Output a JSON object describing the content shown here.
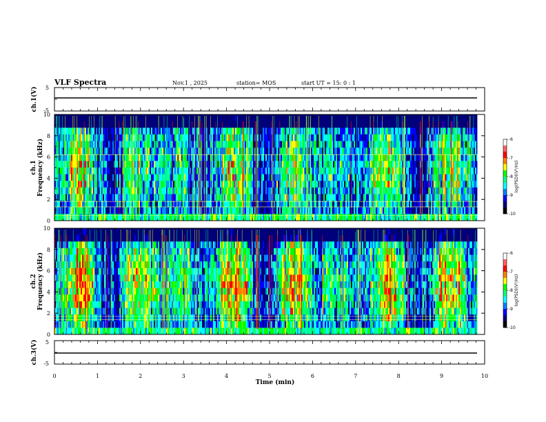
{
  "header": {
    "title": "VLF Spectra",
    "date": "Nov.1 , 2025",
    "station": "station= MOS",
    "start": "start UT = 15: 0 : 1"
  },
  "chart_data": [
    {
      "type": "line",
      "name": "ch1-waveform",
      "ylabel": "ch.1(V)",
      "ylim": [
        -5,
        5
      ],
      "yticks": [
        "5",
        "-5"
      ],
      "xlim": [
        0,
        10
      ],
      "level": 0
    },
    {
      "type": "heatmap",
      "name": "ch1-spectrogram",
      "ylabel": "ch.1\nFrequency (kHz)",
      "ylim": [
        0,
        10
      ],
      "yticks": [
        "0",
        "2",
        "4",
        "6",
        "8",
        "10"
      ],
      "xlim": [
        0,
        10
      ],
      "data_end_min": 9.83,
      "colorbar": {
        "label": "log(PSD)(V²/Hz)",
        "ticks": [
          "-6",
          "-7",
          "-8",
          "-9",
          "-10"
        ],
        "range": [
          -10,
          -6
        ]
      },
      "horizontal_lines_khz": [
        0.5,
        1.3,
        1.8,
        6.2
      ]
    },
    {
      "type": "heatmap",
      "name": "ch2-spectrogram",
      "ylabel": "ch.2\nFrequency (kHz)",
      "ylim": [
        0,
        10
      ],
      "yticks": [
        "0",
        "2",
        "4",
        "6",
        "8",
        "10"
      ],
      "xlim": [
        0,
        10
      ],
      "data_end_min": 9.83,
      "colorbar": {
        "label": "log(PSD)(V²/Hz)",
        "ticks": [
          "-6",
          "-7",
          "-8",
          "-9",
          "-10"
        ],
        "range": [
          -10,
          -6
        ]
      },
      "horizontal_lines_khz": [
        1.4,
        1.7
      ]
    },
    {
      "type": "line",
      "name": "ch3-waveform",
      "ylabel": "ch.3(V)",
      "ylim": [
        -5,
        5
      ],
      "yticks": [
        "5",
        "-5"
      ],
      "xlim": [
        0,
        10
      ],
      "level": 0
    }
  ],
  "xaxis": {
    "label": "Time (min)",
    "ticks": [
      "0",
      "1",
      "2",
      "3",
      "4",
      "5",
      "6",
      "7",
      "8",
      "9",
      "10"
    ]
  },
  "colors": {
    "palette": [
      "#000000",
      "#00007a",
      "#0000ff",
      "#0080ff",
      "#00ffff",
      "#00ff80",
      "#00ff00",
      "#ffff00",
      "#ff8000",
      "#ff0000",
      "#ffffff"
    ]
  }
}
